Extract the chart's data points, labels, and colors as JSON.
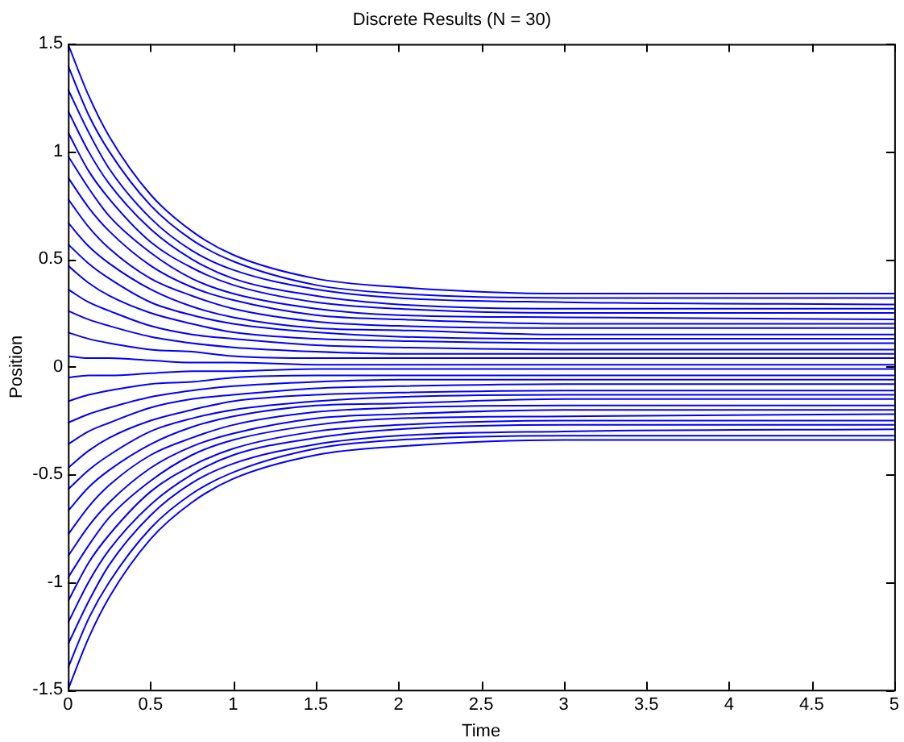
{
  "chart_data": {
    "type": "line",
    "title": "Discrete Results (N = 30)",
    "xlabel": "Time",
    "ylabel": "Position",
    "x": [
      0,
      0.125,
      0.25,
      0.5,
      0.75,
      1,
      1.5,
      2,
      3,
      5
    ],
    "xlim": [
      0,
      5
    ],
    "xticks": [
      0,
      0.5,
      1,
      1.5,
      2,
      2.5,
      3,
      3.5,
      4,
      4.5,
      5
    ],
    "ylim": [
      -1.5,
      1.5
    ],
    "yticks": [
      -1.5,
      -1,
      -0.5,
      0,
      0.5,
      1,
      1.5
    ],
    "grid": false,
    "legend": false,
    "marker": "none",
    "line_style": "solid",
    "series": [
      {
        "color": "#0000ff",
        "values": [
          -1.5,
          -1.26,
          -1.07,
          -0.8,
          -0.63,
          -0.52,
          -0.41,
          -0.37,
          -0.34,
          -0.34
        ]
      },
      {
        "color": "#0000ff",
        "values": [
          -1.4,
          -1.17,
          -1.0,
          -0.75,
          -0.59,
          -0.49,
          -0.38,
          -0.34,
          -0.32,
          -0.32
        ]
      },
      {
        "color": "#0000ff",
        "values": [
          -1.29,
          -1.09,
          -0.92,
          -0.69,
          -0.54,
          -0.45,
          -0.36,
          -0.32,
          -0.3,
          -0.29
        ]
      },
      {
        "color": "#0000ff",
        "values": [
          -1.19,
          -1.0,
          -0.85,
          -0.64,
          -0.5,
          -0.41,
          -0.33,
          -0.29,
          -0.27,
          -0.27
        ]
      },
      {
        "color": "#0000ff",
        "values": [
          -1.09,
          -0.91,
          -0.78,
          -0.58,
          -0.46,
          -0.38,
          -0.3,
          -0.27,
          -0.25,
          -0.25
        ]
      },
      {
        "color": "#0000ff",
        "values": [
          -0.98,
          -0.83,
          -0.7,
          -0.53,
          -0.41,
          -0.34,
          -0.27,
          -0.24,
          -0.23,
          -0.22
        ]
      },
      {
        "color": "#0000ff",
        "values": [
          -0.88,
          -0.74,
          -0.63,
          -0.47,
          -0.37,
          -0.31,
          -0.24,
          -0.22,
          -0.2,
          -0.2
        ]
      },
      {
        "color": "#0000ff",
        "values": [
          -0.78,
          -0.65,
          -0.55,
          -0.41,
          -0.33,
          -0.27,
          -0.21,
          -0.19,
          -0.18,
          -0.18
        ]
      },
      {
        "color": "#0000ff",
        "values": [
          -0.67,
          -0.56,
          -0.48,
          -0.36,
          -0.28,
          -0.23,
          -0.18,
          -0.17,
          -0.15,
          -0.15
        ]
      },
      {
        "color": "#0000ff",
        "values": [
          -0.57,
          -0.48,
          -0.41,
          -0.3,
          -0.24,
          -0.2,
          -0.16,
          -0.14,
          -0.13,
          -0.13
        ]
      },
      {
        "color": "#0000ff",
        "values": [
          -0.47,
          -0.39,
          -0.33,
          -0.25,
          -0.2,
          -0.16,
          -0.13,
          -0.12,
          -0.11,
          -0.11
        ]
      },
      {
        "color": "#0000ff",
        "values": [
          -0.36,
          -0.3,
          -0.26,
          -0.19,
          -0.15,
          -0.13,
          -0.1,
          -0.09,
          -0.08,
          -0.08
        ]
      },
      {
        "color": "#0000ff",
        "values": [
          -0.26,
          -0.22,
          -0.19,
          -0.14,
          -0.11,
          -0.09,
          -0.07,
          -0.06,
          -0.06,
          -0.06
        ]
      },
      {
        "color": "#0000ff",
        "values": [
          -0.16,
          -0.13,
          -0.11,
          -0.08,
          -0.07,
          -0.05,
          -0.04,
          -0.04,
          -0.04,
          -0.04
        ]
      },
      {
        "color": "#0000ff",
        "values": [
          -0.05,
          -0.04,
          -0.04,
          -0.03,
          -0.02,
          -0.02,
          -0.01,
          -0.01,
          -0.01,
          -0.01
        ]
      },
      {
        "color": "#0000ff",
        "values": [
          0.05,
          0.04,
          0.04,
          0.03,
          0.02,
          0.02,
          0.01,
          0.01,
          0.01,
          0.01
        ]
      },
      {
        "color": "#0000ff",
        "values": [
          0.16,
          0.13,
          0.11,
          0.08,
          0.07,
          0.05,
          0.04,
          0.04,
          0.04,
          0.04
        ]
      },
      {
        "color": "#0000ff",
        "values": [
          0.26,
          0.22,
          0.19,
          0.14,
          0.11,
          0.09,
          0.07,
          0.06,
          0.06,
          0.06
        ]
      },
      {
        "color": "#0000ff",
        "values": [
          0.36,
          0.3,
          0.26,
          0.19,
          0.15,
          0.13,
          0.1,
          0.09,
          0.08,
          0.08
        ]
      },
      {
        "color": "#0000ff",
        "values": [
          0.47,
          0.39,
          0.33,
          0.25,
          0.2,
          0.16,
          0.13,
          0.12,
          0.11,
          0.11
        ]
      },
      {
        "color": "#0000ff",
        "values": [
          0.57,
          0.48,
          0.41,
          0.3,
          0.24,
          0.2,
          0.16,
          0.14,
          0.13,
          0.13
        ]
      },
      {
        "color": "#0000ff",
        "values": [
          0.67,
          0.56,
          0.48,
          0.36,
          0.28,
          0.23,
          0.18,
          0.17,
          0.15,
          0.15
        ]
      },
      {
        "color": "#0000ff",
        "values": [
          0.78,
          0.65,
          0.55,
          0.41,
          0.33,
          0.27,
          0.21,
          0.19,
          0.18,
          0.18
        ]
      },
      {
        "color": "#0000ff",
        "values": [
          0.88,
          0.74,
          0.63,
          0.47,
          0.37,
          0.31,
          0.24,
          0.22,
          0.2,
          0.2
        ]
      },
      {
        "color": "#0000ff",
        "values": [
          0.98,
          0.83,
          0.7,
          0.53,
          0.41,
          0.34,
          0.27,
          0.24,
          0.23,
          0.22
        ]
      },
      {
        "color": "#0000ff",
        "values": [
          1.09,
          0.91,
          0.78,
          0.58,
          0.46,
          0.38,
          0.3,
          0.27,
          0.25,
          0.25
        ]
      },
      {
        "color": "#0000ff",
        "values": [
          1.19,
          1.0,
          0.85,
          0.64,
          0.5,
          0.41,
          0.33,
          0.29,
          0.27,
          0.27
        ]
      },
      {
        "color": "#0000ff",
        "values": [
          1.29,
          1.09,
          0.92,
          0.69,
          0.54,
          0.45,
          0.36,
          0.32,
          0.3,
          0.29
        ]
      },
      {
        "color": "#0000ff",
        "values": [
          1.4,
          1.17,
          1.0,
          0.75,
          0.59,
          0.49,
          0.38,
          0.34,
          0.32,
          0.32
        ]
      },
      {
        "color": "#0000ff",
        "values": [
          1.5,
          1.26,
          1.07,
          0.8,
          0.63,
          0.52,
          0.41,
          0.37,
          0.34,
          0.34
        ]
      }
    ]
  }
}
